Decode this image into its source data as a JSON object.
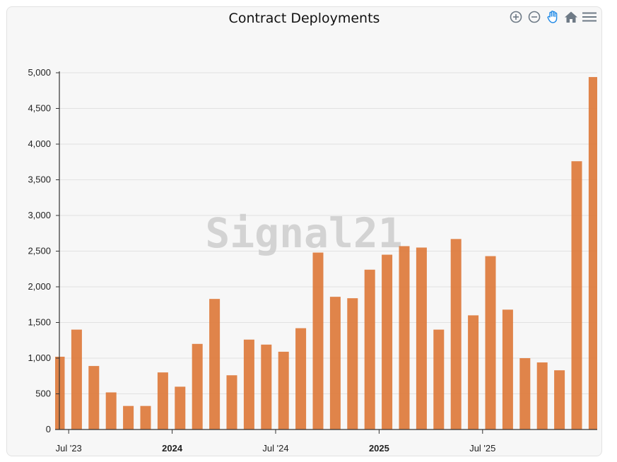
{
  "toolbar": {
    "icons": [
      "zoom-in-icon",
      "zoom-out-icon",
      "pan-hand-icon",
      "home-icon",
      "menu-icon"
    ],
    "accent": "#1e88e5",
    "icon_color": "#6e7a86"
  },
  "watermark": "Signal21",
  "colors": {
    "bar": "#dd7a3b",
    "grid": "#e2e2e2",
    "axis": "#333333",
    "background": "#f7f7f7"
  },
  "chart_data": {
    "type": "bar",
    "title": "Contract Deployments",
    "xlabel": "",
    "ylabel": "",
    "ylim": [
      0,
      5000
    ],
    "yticks": [
      0,
      500,
      1000,
      1500,
      2000,
      2500,
      3000,
      3500,
      4000,
      4500,
      5000
    ],
    "ytick_labels": [
      "0",
      "500",
      "1,000",
      "1,500",
      "2,000",
      "2,500",
      "3,000",
      "3,500",
      "4,000",
      "4,500",
      "5,000"
    ],
    "categories": [
      "2023-06",
      "2023-07",
      "2023-08",
      "2023-09",
      "2023-10",
      "2023-11",
      "2023-12",
      "2024-01",
      "2024-02",
      "2024-03",
      "2024-04",
      "2024-05",
      "2024-06",
      "2024-07",
      "2024-08",
      "2024-09",
      "2024-10",
      "2024-11",
      "2024-12",
      "2025-01",
      "2025-02",
      "2025-03",
      "2025-04",
      "2025-05",
      "2025-06",
      "2025-07",
      "2025-08",
      "2025-09",
      "2025-10",
      "2025-11",
      "2025-12",
      "2026-01"
    ],
    "values": [
      1020,
      1400,
      890,
      520,
      330,
      330,
      800,
      600,
      1200,
      1830,
      760,
      1260,
      1190,
      1090,
      1420,
      2480,
      1860,
      1840,
      2240,
      2450,
      2570,
      2550,
      1400,
      2670,
      1600,
      2430,
      1680,
      1000,
      940,
      830,
      3760,
      4940
    ],
    "x_tick_labels": [
      {
        "label": "Jul '23",
        "index": 1,
        "bold": false
      },
      {
        "label": "2024",
        "index": 7,
        "bold": true
      },
      {
        "label": "Jul '24",
        "index": 13,
        "bold": false
      },
      {
        "label": "2025",
        "index": 19,
        "bold": true
      },
      {
        "label": "Jul '25",
        "index": 25,
        "bold": false
      }
    ]
  }
}
